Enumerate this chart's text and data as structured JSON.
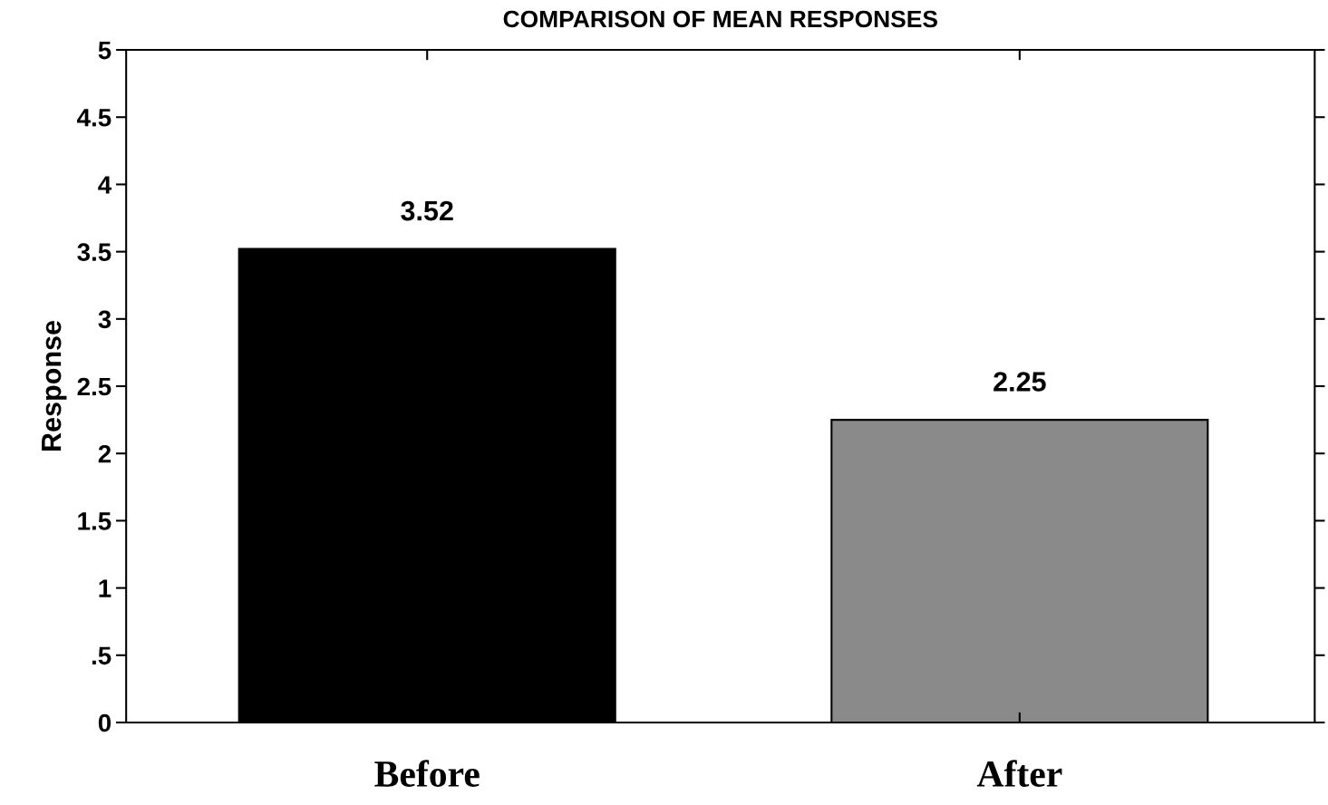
{
  "chart_data": {
    "type": "bar",
    "title": "COMPARISON OF MEAN RESPONSES",
    "ylabel": "Response",
    "categories": [
      "Before",
      "After"
    ],
    "values": [
      3.52,
      2.25
    ],
    "colors": [
      "#000000",
      "#8a8a8a"
    ],
    "data_labels": true,
    "ylim": [
      0,
      5
    ],
    "yticks": [
      0,
      {
        "value": 0.5,
        "label": ".5"
      },
      1,
      1.5,
      2,
      2.5,
      3,
      3.5,
      4,
      4.5,
      5
    ],
    "grid": false,
    "legend": false
  }
}
